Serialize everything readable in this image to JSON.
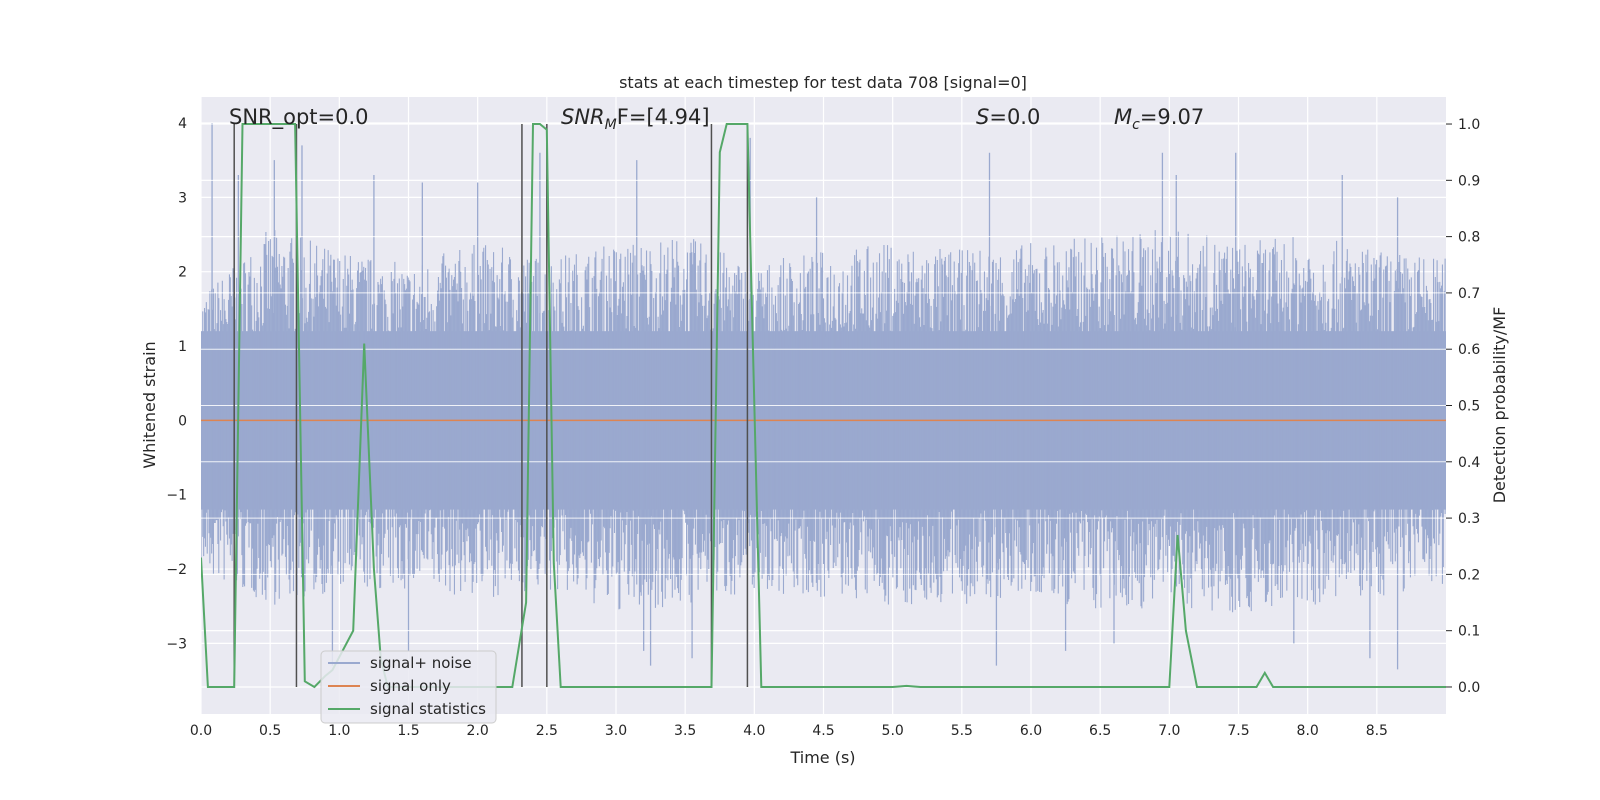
{
  "chart_data": {
    "type": "line",
    "title": "stats at each timestep for test data 708 [signal=0]",
    "xlabel": "Time (s)",
    "ylabel": "Whitened strain",
    "y2label": "Detection probability/MF",
    "xlim": [
      0,
      9.0
    ],
    "ylim": [
      -3.95,
      4.35
    ],
    "y2lim": [
      -0.048,
      1.048
    ],
    "xticks": [
      "0.0",
      "0.5",
      "1.0",
      "1.5",
      "2.0",
      "2.5",
      "3.0",
      "3.5",
      "4.0",
      "4.5",
      "5.0",
      "5.5",
      "6.0",
      "6.5",
      "7.0",
      "7.5",
      "8.0",
      "8.5"
    ],
    "yticks": [
      "4",
      "3",
      "2",
      "1",
      "0",
      "−1",
      "−2",
      "−3"
    ],
    "y2ticks": [
      "1.0",
      "0.9",
      "0.8",
      "0.7",
      "0.6",
      "0.5",
      "0.4",
      "0.3",
      "0.2",
      "0.1",
      "0.0"
    ],
    "grid": true,
    "legend_position": "lower-left",
    "annotations": {
      "snr_opt": "SNR_opt=0.0",
      "snr_mf_main": "SNR",
      "snr_mf_sub": "M",
      "snr_mf_rest": "F=[4.94]",
      "s_var": "S",
      "s_rest": "=0.0",
      "mc_var": "M",
      "mc_sub": "c",
      "mc_rest": "=9.07"
    },
    "series": [
      {
        "name": "signal+ noise",
        "color": "#9aa9cf",
        "envelope": {
          "upper": [
            [
              0.0,
              1.7
            ],
            [
              0.5,
              2.6
            ],
            [
              1.0,
              2.3
            ],
            [
              1.5,
              2.1
            ],
            [
              2.0,
              2.4
            ],
            [
              2.5,
              2.2
            ],
            [
              3.0,
              2.4
            ],
            [
              3.5,
              2.5
            ],
            [
              4.0,
              2.1
            ],
            [
              4.5,
              2.3
            ],
            [
              5.0,
              2.4
            ],
            [
              5.5,
              2.3
            ],
            [
              6.0,
              2.4
            ],
            [
              6.5,
              2.5
            ],
            [
              7.0,
              2.6
            ],
            [
              7.5,
              2.4
            ],
            [
              8.0,
              2.5
            ],
            [
              8.5,
              2.3
            ],
            [
              9.0,
              2.2
            ]
          ],
          "lower": [
            [
              0.0,
              -2.1
            ],
            [
              0.5,
              -2.5
            ],
            [
              1.0,
              -2.3
            ],
            [
              1.5,
              -2.3
            ],
            [
              2.0,
              -2.4
            ],
            [
              2.5,
              -2.3
            ],
            [
              3.0,
              -2.6
            ],
            [
              3.5,
              -2.5
            ],
            [
              4.0,
              -2.3
            ],
            [
              4.5,
              -2.4
            ],
            [
              5.0,
              -2.5
            ],
            [
              5.5,
              -2.5
            ],
            [
              6.0,
              -2.4
            ],
            [
              6.5,
              -2.6
            ],
            [
              7.0,
              -2.5
            ],
            [
              7.5,
              -2.6
            ],
            [
              8.0,
              -2.5
            ],
            [
              8.5,
              -2.4
            ],
            [
              9.0,
              -2.2
            ]
          ]
        },
        "spikes": [
          [
            0.08,
            4.0
          ],
          [
            0.27,
            3.3
          ],
          [
            0.53,
            3.5
          ],
          [
            0.73,
            3.7
          ],
          [
            1.25,
            3.3
          ],
          [
            1.6,
            3.2
          ],
          [
            2.0,
            3.2
          ],
          [
            2.45,
            3.6
          ],
          [
            3.15,
            3.5
          ],
          [
            3.97,
            3.8
          ],
          [
            4.45,
            3.0
          ],
          [
            5.7,
            3.6
          ],
          [
            6.95,
            3.6
          ],
          [
            7.05,
            3.3
          ],
          [
            7.48,
            3.6
          ],
          [
            8.25,
            3.3
          ],
          [
            8.65,
            3.0
          ],
          [
            0.95,
            -3.3
          ],
          [
            1.5,
            -3.1
          ],
          [
            3.25,
            -3.3
          ],
          [
            3.55,
            -3.2
          ],
          [
            5.75,
            -3.3
          ],
          [
            6.6,
            -3.0
          ],
          [
            7.9,
            -3.0
          ],
          [
            8.45,
            -3.2
          ],
          [
            8.65,
            -3.35
          ],
          [
            3.2,
            -3.1
          ],
          [
            6.25,
            -3.1
          ]
        ]
      },
      {
        "name": "signal only",
        "color": "#dd8452",
        "x": [
          0.0,
          9.0
        ],
        "y": [
          0.0,
          0.0
        ]
      },
      {
        "name": "signal statistics",
        "color": "#55a868",
        "axis": "right",
        "x": [
          0.0,
          0.05,
          0.15,
          0.24,
          0.3,
          0.5,
          0.68,
          0.75,
          0.82,
          0.9,
          0.95,
          1.1,
          1.18,
          1.25,
          1.3,
          1.35,
          1.45,
          1.6,
          2.0,
          2.25,
          2.35,
          2.4,
          2.45,
          2.5,
          2.55,
          2.6,
          2.8,
          3.5,
          3.69,
          3.75,
          3.8,
          3.95,
          4.05,
          4.5,
          5.0,
          5.1,
          5.2,
          5.5,
          7.0,
          7.06,
          7.12,
          7.2,
          7.3,
          7.5,
          7.63,
          7.69,
          7.75,
          8.0,
          9.0
        ],
        "y": [
          0.23,
          0.0,
          0.0,
          0.0,
          1.0,
          1.0,
          1.0,
          0.01,
          0.0,
          0.02,
          0.03,
          0.1,
          0.61,
          0.21,
          0.05,
          0.0,
          0.0,
          0.0,
          0.0,
          0.0,
          0.15,
          1.0,
          1.0,
          0.99,
          0.22,
          0.0,
          0.0,
          0.0,
          0.0,
          0.95,
          1.0,
          1.0,
          0.0,
          0.0,
          0.0,
          0.002,
          0.0,
          0.0,
          0.0,
          0.27,
          0.1,
          0.0,
          0.0,
          0.0,
          0.0,
          0.025,
          0.0,
          0.0,
          0.0
        ]
      }
    ],
    "vlines": [
      0.24,
      0.69,
      2.32,
      2.5,
      3.69,
      3.95
    ]
  }
}
